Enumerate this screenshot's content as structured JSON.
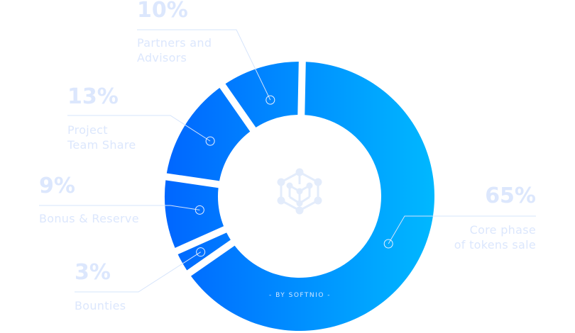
{
  "chart_data": {
    "type": "pie",
    "variant": "donut",
    "slices": [
      {
        "label": "Core phase of tokens sale",
        "lines": [
          "Core phase",
          "of tokens sale"
        ],
        "value": 65,
        "value_label": "65%"
      },
      {
        "label": "Bounties",
        "lines": [
          "Bounties"
        ],
        "value": 3,
        "value_label": "3%"
      },
      {
        "label": "Bonus & Reserve",
        "lines": [
          "Bonus & Reserve"
        ],
        "value": 9,
        "value_label": "9%"
      },
      {
        "label": "Project Team Share",
        "lines": [
          "Project",
          "Team Share"
        ],
        "value": 13,
        "value_label": "13%"
      },
      {
        "label": "Partners and Advisors",
        "lines": [
          "Partners and",
          "Advisors"
        ],
        "value": 10,
        "value_label": "10%"
      }
    ],
    "gradient": [
      "#0066ff",
      "#00b8ff"
    ],
    "label_color": "#dce7fd",
    "center_icon": "hexagon-network-icon",
    "footer": "- BY SOFTNIO -"
  }
}
